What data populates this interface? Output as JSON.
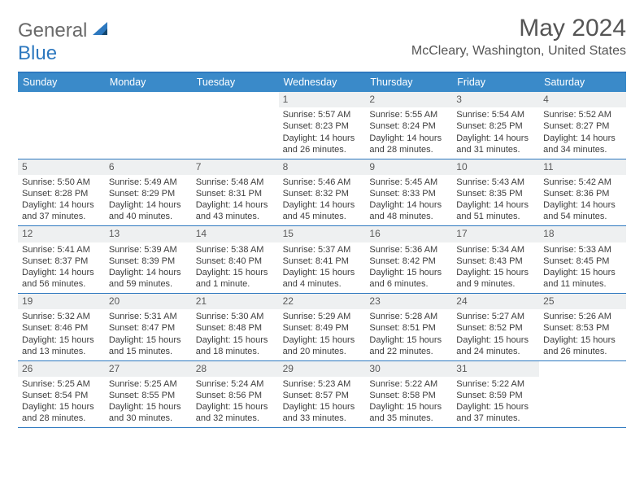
{
  "brand": {
    "w1": "General",
    "w2": "Blue"
  },
  "header": {
    "title": "May 2024",
    "location": "McCleary, Washington, United States"
  },
  "colors": {
    "accent": "#2d78bf",
    "header_row": "#3a8ac9",
    "daynum_bg": "#eef0f1",
    "text": "#3d3d3d"
  },
  "days": [
    "Sunday",
    "Monday",
    "Tuesday",
    "Wednesday",
    "Thursday",
    "Friday",
    "Saturday"
  ],
  "weeks": [
    [
      null,
      null,
      null,
      {
        "n": "1",
        "sr": "5:57 AM",
        "ss": "8:23 PM",
        "dl": "14 hours and 26 minutes."
      },
      {
        "n": "2",
        "sr": "5:55 AM",
        "ss": "8:24 PM",
        "dl": "14 hours and 28 minutes."
      },
      {
        "n": "3",
        "sr": "5:54 AM",
        "ss": "8:25 PM",
        "dl": "14 hours and 31 minutes."
      },
      {
        "n": "4",
        "sr": "5:52 AM",
        "ss": "8:27 PM",
        "dl": "14 hours and 34 minutes."
      }
    ],
    [
      {
        "n": "5",
        "sr": "5:50 AM",
        "ss": "8:28 PM",
        "dl": "14 hours and 37 minutes."
      },
      {
        "n": "6",
        "sr": "5:49 AM",
        "ss": "8:29 PM",
        "dl": "14 hours and 40 minutes."
      },
      {
        "n": "7",
        "sr": "5:48 AM",
        "ss": "8:31 PM",
        "dl": "14 hours and 43 minutes."
      },
      {
        "n": "8",
        "sr": "5:46 AM",
        "ss": "8:32 PM",
        "dl": "14 hours and 45 minutes."
      },
      {
        "n": "9",
        "sr": "5:45 AM",
        "ss": "8:33 PM",
        "dl": "14 hours and 48 minutes."
      },
      {
        "n": "10",
        "sr": "5:43 AM",
        "ss": "8:35 PM",
        "dl": "14 hours and 51 minutes."
      },
      {
        "n": "11",
        "sr": "5:42 AM",
        "ss": "8:36 PM",
        "dl": "14 hours and 54 minutes."
      }
    ],
    [
      {
        "n": "12",
        "sr": "5:41 AM",
        "ss": "8:37 PM",
        "dl": "14 hours and 56 minutes."
      },
      {
        "n": "13",
        "sr": "5:39 AM",
        "ss": "8:39 PM",
        "dl": "14 hours and 59 minutes."
      },
      {
        "n": "14",
        "sr": "5:38 AM",
        "ss": "8:40 PM",
        "dl": "15 hours and 1 minute."
      },
      {
        "n": "15",
        "sr": "5:37 AM",
        "ss": "8:41 PM",
        "dl": "15 hours and 4 minutes."
      },
      {
        "n": "16",
        "sr": "5:36 AM",
        "ss": "8:42 PM",
        "dl": "15 hours and 6 minutes."
      },
      {
        "n": "17",
        "sr": "5:34 AM",
        "ss": "8:43 PM",
        "dl": "15 hours and 9 minutes."
      },
      {
        "n": "18",
        "sr": "5:33 AM",
        "ss": "8:45 PM",
        "dl": "15 hours and 11 minutes."
      }
    ],
    [
      {
        "n": "19",
        "sr": "5:32 AM",
        "ss": "8:46 PM",
        "dl": "15 hours and 13 minutes."
      },
      {
        "n": "20",
        "sr": "5:31 AM",
        "ss": "8:47 PM",
        "dl": "15 hours and 15 minutes."
      },
      {
        "n": "21",
        "sr": "5:30 AM",
        "ss": "8:48 PM",
        "dl": "15 hours and 18 minutes."
      },
      {
        "n": "22",
        "sr": "5:29 AM",
        "ss": "8:49 PM",
        "dl": "15 hours and 20 minutes."
      },
      {
        "n": "23",
        "sr": "5:28 AM",
        "ss": "8:51 PM",
        "dl": "15 hours and 22 minutes."
      },
      {
        "n": "24",
        "sr": "5:27 AM",
        "ss": "8:52 PM",
        "dl": "15 hours and 24 minutes."
      },
      {
        "n": "25",
        "sr": "5:26 AM",
        "ss": "8:53 PM",
        "dl": "15 hours and 26 minutes."
      }
    ],
    [
      {
        "n": "26",
        "sr": "5:25 AM",
        "ss": "8:54 PM",
        "dl": "15 hours and 28 minutes."
      },
      {
        "n": "27",
        "sr": "5:25 AM",
        "ss": "8:55 PM",
        "dl": "15 hours and 30 minutes."
      },
      {
        "n": "28",
        "sr": "5:24 AM",
        "ss": "8:56 PM",
        "dl": "15 hours and 32 minutes."
      },
      {
        "n": "29",
        "sr": "5:23 AM",
        "ss": "8:57 PM",
        "dl": "15 hours and 33 minutes."
      },
      {
        "n": "30",
        "sr": "5:22 AM",
        "ss": "8:58 PM",
        "dl": "15 hours and 35 minutes."
      },
      {
        "n": "31",
        "sr": "5:22 AM",
        "ss": "8:59 PM",
        "dl": "15 hours and 37 minutes."
      },
      null
    ]
  ],
  "labels": {
    "sunrise": "Sunrise: ",
    "sunset": "Sunset: ",
    "daylight": "Daylight: "
  }
}
